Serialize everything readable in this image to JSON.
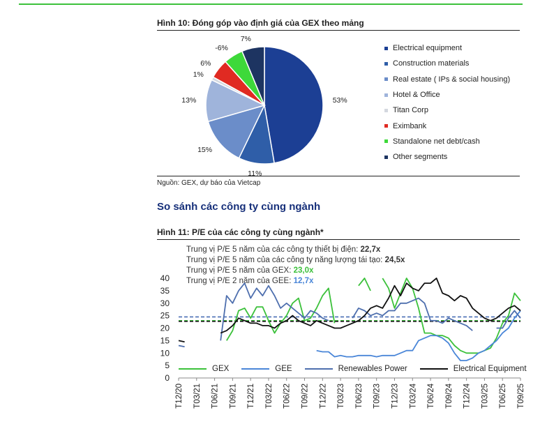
{
  "figure10": {
    "title": "Hình 10: Đóng góp vào định giá của GEX theo mảng",
    "source": "Nguồn: GEX, dự báo của Vietcap"
  },
  "section_title": "So sánh các công ty cùng ngành",
  "figure11": {
    "title": "Hình 11: P/E của các công ty cùng ngành*",
    "annotations": [
      {
        "text": "Trung vị P/E 5 năm của các công ty thiết bị điện: ",
        "value": "22,7x",
        "color": "#1a1a1a"
      },
      {
        "text": "Trung vị P/E 5 năm của các công ty năng lượng tái tạo: ",
        "value": "24,5x",
        "color": "#1a1a1a"
      },
      {
        "text": "Trung vị P/E 5 năm của GEX: ",
        "value": "23,0x",
        "color": "#3cc13b"
      },
      {
        "text": "Trung vị P/E 2 năm của GEE: ",
        "value": "12,7x",
        "color": "#4a86d8"
      }
    ]
  },
  "colors": {
    "accent_green": "#3cc13b",
    "title_navy": "#17307a"
  },
  "chart_data": [
    {
      "type": "pie",
      "labels": [
        "Electrical equipment",
        "Construction materials",
        "Real estate ( IPs & social housing)",
        "Hotel & Office",
        "Titan Corp",
        "Eximbank",
        "Standalone net debt/cash",
        "Other segments"
      ],
      "values": [
        53,
        11,
        15,
        13,
        1,
        6,
        -6,
        7
      ],
      "value_labels": [
        "53%",
        "11%",
        "15%",
        "13%",
        "1%",
        "6%",
        "-6%",
        "7%"
      ],
      "colors": [
        "#1c3f94",
        "#2f5ea8",
        "#6b8dc9",
        "#9fb4db",
        "#d4d8df",
        "#e02a22",
        "#3ed93a",
        "#1d3461"
      ]
    },
    {
      "type": "line",
      "ylim": [
        0,
        40
      ],
      "yticks": [
        0,
        5,
        10,
        15,
        20,
        25,
        30,
        35,
        40
      ],
      "xticks": [
        "T12/20",
        "T03/21",
        "T06/21",
        "T09/21",
        "T12/21",
        "T03/22",
        "T06/22",
        "T09/22",
        "T12/22",
        "T03/23",
        "T06/23",
        "T09/23",
        "T12/23",
        "T03/24",
        "T06/24",
        "T09/24",
        "T12/24",
        "T03/25",
        "T06/25",
        "T09/25"
      ],
      "x_month_range": [
        "2020-12",
        "2025-09"
      ],
      "reference_lines": [
        {
          "value": 24.5,
          "color": "#4a6fb5",
          "dash": true
        },
        {
          "value": 23.0,
          "color": "#3cc13b",
          "dash": true
        },
        {
          "value": 22.7,
          "color": "#1a1a1a",
          "dash": true
        }
      ],
      "series": [
        {
          "name": "GEX",
          "color": "#3cc13b",
          "months": [
            "2020-12",
            "2021-02",
            "2021-04",
            "2021-06",
            "2021-08",
            "2021-09",
            "2021-10",
            "2021-11",
            "2021-12",
            "2022-01",
            "2022-02",
            "2022-03",
            "2022-04",
            "2022-05",
            "2022-06",
            "2022-07",
            "2022-08",
            "2022-09",
            "2022-10",
            "2022-11",
            "2022-12",
            "2023-01",
            "2023-02",
            "2023-06",
            "2023-07",
            "2023-08",
            "2023-10",
            "2023-11",
            "2023-12",
            "2024-01",
            "2024-02",
            "2024-03",
            "2024-04",
            "2024-05",
            "2024-06",
            "2024-07",
            "2024-08",
            "2024-09",
            "2024-10",
            "2024-11",
            "2024-12",
            "2025-01",
            "2025-02",
            "2025-03",
            "2025-04",
            "2025-05",
            "2025-06",
            "2025-07",
            "2025-08",
            "2025-09"
          ],
          "values": [
            13,
            12,
            12.5,
            14,
            15,
            19,
            27,
            28,
            24,
            28.5,
            28.5,
            23,
            18,
            22,
            25,
            30,
            32,
            23,
            24,
            28,
            33,
            36,
            22,
            37,
            40,
            35,
            40,
            36,
            28,
            34,
            40,
            36,
            28,
            18,
            18,
            17,
            17,
            16,
            13,
            11,
            10,
            10,
            10,
            11,
            12,
            16,
            22,
            25,
            34,
            31
          ]
        },
        {
          "name": "GEE",
          "color": "#4a86d8",
          "months": [
            "2022-11",
            "2022-12",
            "2023-01",
            "2023-02",
            "2023-03",
            "2023-04",
            "2023-05",
            "2023-06",
            "2023-07",
            "2023-08",
            "2023-09",
            "2023-10",
            "2023-11",
            "2023-12",
            "2024-01",
            "2024-02",
            "2024-03",
            "2024-04",
            "2024-05",
            "2024-06",
            "2024-07",
            "2024-08",
            "2024-09",
            "2024-10",
            "2024-11",
            "2024-12",
            "2025-01",
            "2025-02",
            "2025-03",
            "2025-04",
            "2025-05",
            "2025-06",
            "2025-07",
            "2025-08",
            "2025-09"
          ],
          "values": [
            11,
            10.5,
            10.5,
            8.5,
            9,
            8.5,
            8.5,
            9,
            9,
            9,
            8.5,
            9,
            9,
            9,
            10,
            11,
            11,
            15,
            16,
            17,
            17,
            16,
            14,
            10,
            7,
            7,
            8,
            10,
            11,
            13,
            15,
            18,
            20,
            24,
            27
          ]
        },
        {
          "name": "Renewables Power",
          "color": "#4e6fae",
          "months": [
            "2020-12",
            "2021-01",
            "2021-03",
            "2021-05",
            "2021-07",
            "2021-08",
            "2021-09",
            "2021-10",
            "2021-11",
            "2021-12",
            "2022-01",
            "2022-02",
            "2022-03",
            "2022-04",
            "2022-05",
            "2022-06",
            "2022-07",
            "2022-08",
            "2022-09",
            "2022-10",
            "2022-11",
            "2022-12",
            "2023-01",
            "2023-03",
            "2023-05",
            "2023-06",
            "2023-07",
            "2023-08",
            "2023-09",
            "2023-10",
            "2023-11",
            "2023-12",
            "2024-01",
            "2024-02",
            "2024-03",
            "2024-04",
            "2024-05",
            "2024-06",
            "2024-07",
            "2024-08",
            "2024-09",
            "2024-10",
            "2024-11",
            "2024-12",
            "2025-01",
            "2025-03",
            "2025-05",
            "2025-06",
            "2025-07",
            "2025-08",
            "2025-09"
          ],
          "values": [
            13,
            12.5,
            14,
            13,
            15,
            33,
            30,
            35,
            38,
            32,
            36,
            33,
            37,
            33,
            28,
            30,
            28,
            26,
            24,
            27,
            26,
            24,
            23,
            22,
            24,
            28,
            27,
            25,
            26,
            25,
            27,
            27,
            30,
            30,
            31,
            32,
            30,
            23,
            23,
            22,
            24,
            23,
            22,
            21,
            19,
            19,
            20,
            20,
            24,
            27,
            24
          ]
        },
        {
          "name": "Electrical Equipment",
          "color": "#111111",
          "months": [
            "2020-12",
            "2021-01",
            "2021-03",
            "2021-05",
            "2021-07",
            "2021-08",
            "2021-09",
            "2021-10",
            "2021-11",
            "2021-12",
            "2022-01",
            "2022-02",
            "2022-03",
            "2022-04",
            "2022-05",
            "2022-06",
            "2022-07",
            "2022-08",
            "2022-09",
            "2022-10",
            "2022-11",
            "2022-12",
            "2023-01",
            "2023-02",
            "2023-03",
            "2023-04",
            "2023-05",
            "2023-06",
            "2023-07",
            "2023-08",
            "2023-09",
            "2023-10",
            "2023-11",
            "2023-12",
            "2024-01",
            "2024-02",
            "2024-03",
            "2024-04",
            "2024-05",
            "2024-06",
            "2024-07",
            "2024-08",
            "2024-09",
            "2024-10",
            "2024-11",
            "2024-12",
            "2025-01",
            "2025-02",
            "2025-03",
            "2025-04",
            "2025-05",
            "2025-06",
            "2025-07",
            "2025-08",
            "2025-09"
          ],
          "values": [
            15,
            14.5,
            16,
            17,
            18,
            19,
            21,
            24,
            23,
            22,
            22,
            21,
            21,
            20,
            22,
            23,
            25,
            23,
            22,
            21,
            23,
            22,
            21,
            20,
            20,
            21,
            22,
            23,
            25,
            28,
            29,
            28,
            32,
            37,
            33,
            38,
            36,
            35,
            38,
            38,
            40,
            34,
            33,
            31,
            33,
            32,
            28,
            26,
            24,
            23,
            24,
            26,
            28,
            29,
            27
          ]
        }
      ]
    }
  ]
}
